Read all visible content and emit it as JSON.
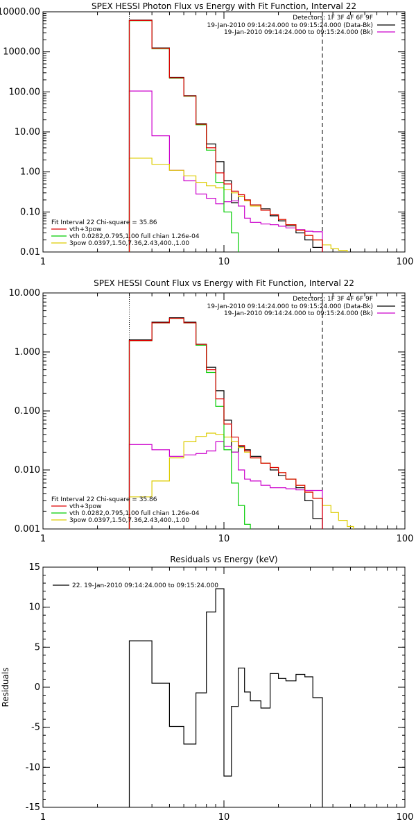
{
  "chart_data": [
    {
      "type": "line",
      "title": "SPEX HESSI Photon Flux vs Energy with Fit Function, Interval 22",
      "x_scale": "log",
      "y_scale": "log",
      "xlim": [
        1,
        100
      ],
      "ylim": [
        0.01,
        10000
      ],
      "x_ticks": [
        {
          "value": 1,
          "label": "1"
        },
        {
          "value": 10,
          "label": "10"
        },
        {
          "value": 100,
          "label": "100"
        }
      ],
      "y_ticks": [
        {
          "value": 0.01,
          "label": "0.01"
        },
        {
          "value": 0.1,
          "label": "0.10"
        },
        {
          "value": 1,
          "label": "1.00"
        },
        {
          "value": 10,
          "label": "10.00"
        },
        {
          "value": 100,
          "label": "100.00"
        },
        {
          "value": 1000,
          "label": "1000.00"
        },
        {
          "value": 10000,
          "label": "10000.00"
        }
      ],
      "detectors": "Detectors: 1F 3F 4F 6F 9F",
      "legend_top_right": [
        {
          "text": "19-Jan-2010 09:14:24.000 to 09:15:24.000 (Data-Bk)",
          "color": "#000000"
        },
        {
          "text": "19-Jan-2010 09:14:24.000 to 09:15:24.000 (Bk)",
          "color": "#cc00cc"
        }
      ],
      "legend_bottom_left_title": "Fit Interval 22   Chi-square = 35.86",
      "legend_bottom_left": [
        {
          "text": "vth+3pow",
          "color": "#dd0000"
        },
        {
          "text": "vth 0.0282,0.795,1.00  full chian 1.26e-04",
          "color": "#00cc00"
        },
        {
          "text": "3pow 0.0397,1.50,7.36,2.43,400.,1.00",
          "color": "#ddcc00"
        }
      ],
      "vlines": [
        {
          "x": 3,
          "style": "dotted",
          "color": "#000000"
        },
        {
          "x": 35,
          "style": "dashed",
          "color": "#000000"
        }
      ],
      "series": [
        {
          "color": "#000000",
          "edges": [
            3,
            4,
            5,
            6,
            7,
            8,
            9,
            10,
            11,
            12,
            13,
            14,
            16,
            18,
            20,
            22,
            25,
            28,
            31,
            35
          ],
          "values": [
            6200,
            1250,
            230,
            80,
            16,
            5,
            1.8,
            0.6,
            0.17,
            0.24,
            0.2,
            0.15,
            0.12,
            0.08,
            0.06,
            0.045,
            0.03,
            0.02,
            0.013
          ]
        },
        {
          "color": "#cc00cc",
          "edges": [
            3,
            4,
            5,
            6,
            7,
            8,
            9,
            10,
            11,
            12,
            13,
            14,
            16,
            18,
            20,
            22,
            25,
            28,
            31,
            35
          ],
          "values": [
            105,
            8,
            1.1,
            0.6,
            0.28,
            0.22,
            0.16,
            0.18,
            0.19,
            0.14,
            0.07,
            0.055,
            0.05,
            0.048,
            0.044,
            0.04,
            0.036,
            0.033,
            0.032
          ]
        },
        {
          "color": "#ddcc00",
          "edges": [
            3,
            4,
            5,
            6,
            7,
            8,
            9,
            10,
            11,
            12,
            13,
            14,
            16,
            18,
            20,
            22,
            25,
            28,
            31,
            35,
            39,
            43,
            48
          ],
          "values": [
            2.2,
            1.55,
            1.1,
            0.8,
            0.55,
            0.45,
            0.4,
            0.36,
            0.3,
            0.24,
            0.19,
            0.14,
            0.11,
            0.085,
            0.065,
            0.048,
            0.035,
            0.026,
            0.02,
            0.015,
            0.012,
            0.011
          ]
        },
        {
          "color": "#00cc00",
          "edges": [
            3,
            4,
            5,
            6,
            7,
            8,
            9,
            10,
            11,
            12
          ],
          "values": [
            6000,
            1200,
            220,
            78,
            15,
            3.5,
            0.55,
            0.1,
            0.03
          ]
        },
        {
          "color": "#dd0000",
          "edges": [
            3,
            4,
            5,
            6,
            7,
            8,
            9,
            10,
            11,
            12,
            13,
            14,
            16,
            18,
            20,
            22,
            25,
            28,
            31,
            35
          ],
          "values": [
            6100,
            1230,
            225,
            79,
            15.5,
            4,
            0.95,
            0.5,
            0.33,
            0.27,
            0.2,
            0.15,
            0.11,
            0.085,
            0.065,
            0.048,
            0.035,
            0.026,
            0.02
          ]
        }
      ]
    },
    {
      "type": "line",
      "title": "SPEX HESSI Count Flux vs Energy with Fit Function, Interval 22",
      "x_scale": "log",
      "y_scale": "log",
      "xlim": [
        1,
        100
      ],
      "ylim": [
        0.001,
        10
      ],
      "x_ticks": [
        {
          "value": 1,
          "label": "1"
        },
        {
          "value": 10,
          "label": "10"
        },
        {
          "value": 100,
          "label": "100"
        }
      ],
      "y_ticks": [
        {
          "value": 0.001,
          "label": "0.001"
        },
        {
          "value": 0.01,
          "label": "0.010"
        },
        {
          "value": 0.1,
          "label": "0.100"
        },
        {
          "value": 1,
          "label": "1.000"
        },
        {
          "value": 10,
          "label": "10.000"
        }
      ],
      "detectors": "Detectors: 1F 3F 4F 6F 9F",
      "legend_top_right": [
        {
          "text": "19-Jan-2010 09:14:24.000 to 09:15:24.000 (Data-Bk)",
          "color": "#000000"
        },
        {
          "text": "19-Jan-2010 09:14:24.000 to 09:15:24.000 (Bk)",
          "color": "#cc00cc"
        }
      ],
      "legend_bottom_left_title": "Fit Interval 22   Chi-square = 35.86",
      "legend_bottom_left": [
        {
          "text": "vth+3pow",
          "color": "#dd0000"
        },
        {
          "text": "vth 0.0282,0.795,1.00  full chian 1.26e-04",
          "color": "#00cc00"
        },
        {
          "text": "3pow 0.0397,1.50,7.36,2.43,400.,1.00",
          "color": "#ddcc00"
        }
      ],
      "vlines": [
        {
          "x": 3,
          "style": "dotted",
          "color": "#000000"
        },
        {
          "x": 35,
          "style": "dashed",
          "color": "#000000"
        }
      ],
      "series": [
        {
          "color": "#000000",
          "edges": [
            3,
            4,
            5,
            6,
            7,
            8,
            9,
            10,
            11,
            12,
            13,
            14,
            16,
            18,
            20,
            22,
            25,
            28,
            31,
            35
          ],
          "values": [
            1.6,
            3.2,
            3.8,
            3.2,
            1.35,
            0.55,
            0.22,
            0.07,
            0.02,
            0.025,
            0.022,
            0.017,
            0.013,
            0.01,
            0.008,
            0.007,
            0.005,
            0.003,
            0.0015
          ]
        },
        {
          "color": "#cc00cc",
          "edges": [
            3,
            4,
            5,
            6,
            7,
            8,
            9,
            10,
            11,
            12,
            13,
            14,
            16,
            18,
            20,
            22,
            25,
            28,
            31,
            35
          ],
          "values": [
            0.027,
            0.022,
            0.017,
            0.018,
            0.019,
            0.021,
            0.03,
            0.025,
            0.02,
            0.01,
            0.007,
            0.0065,
            0.0055,
            0.005,
            0.005,
            0.0048,
            0.0046,
            0.0045,
            0.0045
          ]
        },
        {
          "color": "#ddcc00",
          "edges": [
            3,
            4,
            5,
            6,
            7,
            8,
            9,
            10,
            11,
            12,
            13,
            14,
            16,
            18,
            20,
            22,
            25,
            28,
            31,
            35,
            39,
            43,
            48,
            52
          ],
          "values": [
            0.0035,
            0.0065,
            0.016,
            0.03,
            0.037,
            0.042,
            0.04,
            0.036,
            0.03,
            0.024,
            0.02,
            0.016,
            0.013,
            0.011,
            0.009,
            0.007,
            0.0055,
            0.0042,
            0.0033,
            0.0025,
            0.0019,
            0.0014,
            0.0011
          ]
        },
        {
          "color": "#00cc00",
          "edges": [
            3,
            4,
            5,
            6,
            7,
            8,
            9,
            10,
            11,
            12,
            13,
            14
          ],
          "values": [
            1.55,
            3.1,
            3.7,
            3.1,
            1.3,
            0.45,
            0.12,
            0.022,
            0.006,
            0.0025,
            0.0012
          ]
        },
        {
          "color": "#dd0000",
          "edges": [
            3,
            4,
            5,
            6,
            7,
            8,
            9,
            10,
            11,
            12,
            13,
            14,
            16,
            18,
            20,
            22,
            25,
            28,
            31,
            35
          ],
          "values": [
            1.56,
            3.12,
            3.72,
            3.12,
            1.34,
            0.5,
            0.16,
            0.06,
            0.036,
            0.026,
            0.021,
            0.016,
            0.013,
            0.011,
            0.009,
            0.007,
            0.0055,
            0.0042,
            0.0033
          ]
        }
      ]
    },
    {
      "type": "line",
      "title": "Residuals vs Energy (keV)",
      "ylabel": "Residuals",
      "x_scale": "log",
      "y_scale": "linear",
      "xlim": [
        1,
        100
      ],
      "ylim": [
        -15,
        15
      ],
      "x_ticks": [
        {
          "value": 1,
          "label": "1"
        },
        {
          "value": 10,
          "label": "10"
        },
        {
          "value": 100,
          "label": "100"
        }
      ],
      "y_ticks": [
        {
          "value": -15,
          "label": "-15"
        },
        {
          "value": -10,
          "label": "-10"
        },
        {
          "value": -5,
          "label": "-5"
        },
        {
          "value": 0,
          "label": "0"
        },
        {
          "value": 5,
          "label": "5"
        },
        {
          "value": 10,
          "label": "10"
        },
        {
          "value": 15,
          "label": "15"
        }
      ],
      "legend": [
        {
          "text": "22. 19-Jan-2010 09:14:24.000 to 09:15:24.000",
          "color": "#000000"
        }
      ],
      "series": [
        {
          "color": "#000000",
          "edges": [
            3,
            4,
            5,
            6,
            7,
            8,
            9,
            10,
            11,
            12,
            13,
            14,
            16,
            18,
            20,
            22,
            25,
            28,
            31,
            35
          ],
          "values": [
            5.8,
            0.5,
            -4.9,
            -7.1,
            -0.7,
            9.4,
            12.3,
            -11.1,
            -2.4,
            2.4,
            -0.6,
            -1.7,
            -2.6,
            1.7,
            1.1,
            0.8,
            1.6,
            1.3,
            -1.3
          ]
        }
      ]
    }
  ]
}
